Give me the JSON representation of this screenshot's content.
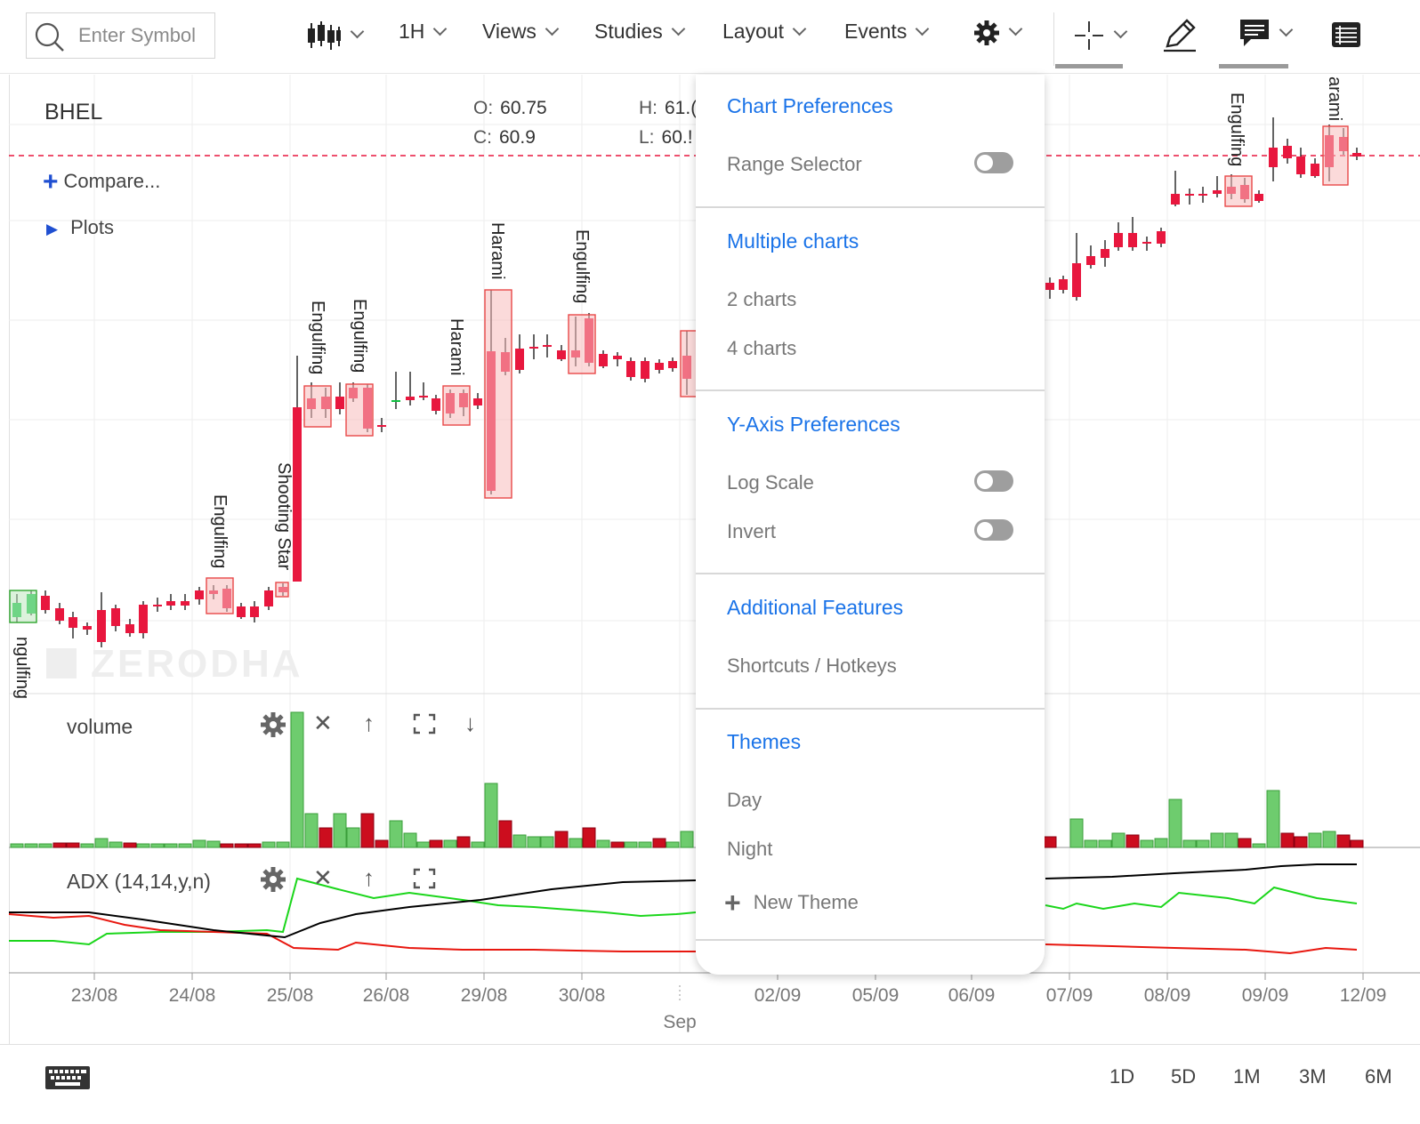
{
  "toolbar": {
    "search_placeholder": "Enter Symbol",
    "interval": "1H",
    "views": "Views",
    "studies": "Studies",
    "layout": "Layout",
    "events": "Events"
  },
  "chart": {
    "symbol": "BHEL",
    "ohlc": {
      "o_key": "O:",
      "o": "60.75",
      "h_key": "H:",
      "h": "61.(",
      "c_key": "C:",
      "c": "60.9",
      "l_key": "L:",
      "l": "60.!"
    },
    "compare": "Compare...",
    "plots": "Plots",
    "watermark": "ZERODHA",
    "patterns": [
      "ngulfing",
      "Engulfing",
      "Shooting Star",
      "Engulfing",
      "Engulfing",
      "Harami",
      "Harami",
      "Engulfing",
      "Engulfing",
      "arami"
    ]
  },
  "panels": {
    "volume": "volume",
    "adx": "ADX (14,14,y,n)"
  },
  "x_axis": {
    "labels": [
      "23/08",
      "24/08",
      "25/08",
      "26/08",
      "29/08",
      "30/08",
      "02/09",
      "05/09",
      "06/09",
      "07/09",
      "08/09",
      "09/09",
      "12/09"
    ],
    "month": "Sep"
  },
  "range_buttons": [
    "1D",
    "5D",
    "1M",
    "3M",
    "6M"
  ],
  "menu": {
    "chart_preferences": "Chart Preferences",
    "range_selector": "Range Selector",
    "multiple_charts": "Multiple charts",
    "two_charts": "2 charts",
    "four_charts": "4 charts",
    "y_axis_preferences": "Y-Axis Preferences",
    "log_scale": "Log Scale",
    "invert": "Invert",
    "additional_features": "Additional Features",
    "shortcuts": "Shortcuts / Hotkeys",
    "themes": "Themes",
    "day": "Day",
    "night": "Night",
    "new_theme": "New Theme"
  },
  "colors": {
    "up": "#0fbf3f",
    "down": "#e8173e",
    "accent": "#1a73e8",
    "pattern_box": "#f7bcbc",
    "adx_plus": "#1bd61b",
    "adx_minus": "#e8170f",
    "adx": "#000000"
  }
}
